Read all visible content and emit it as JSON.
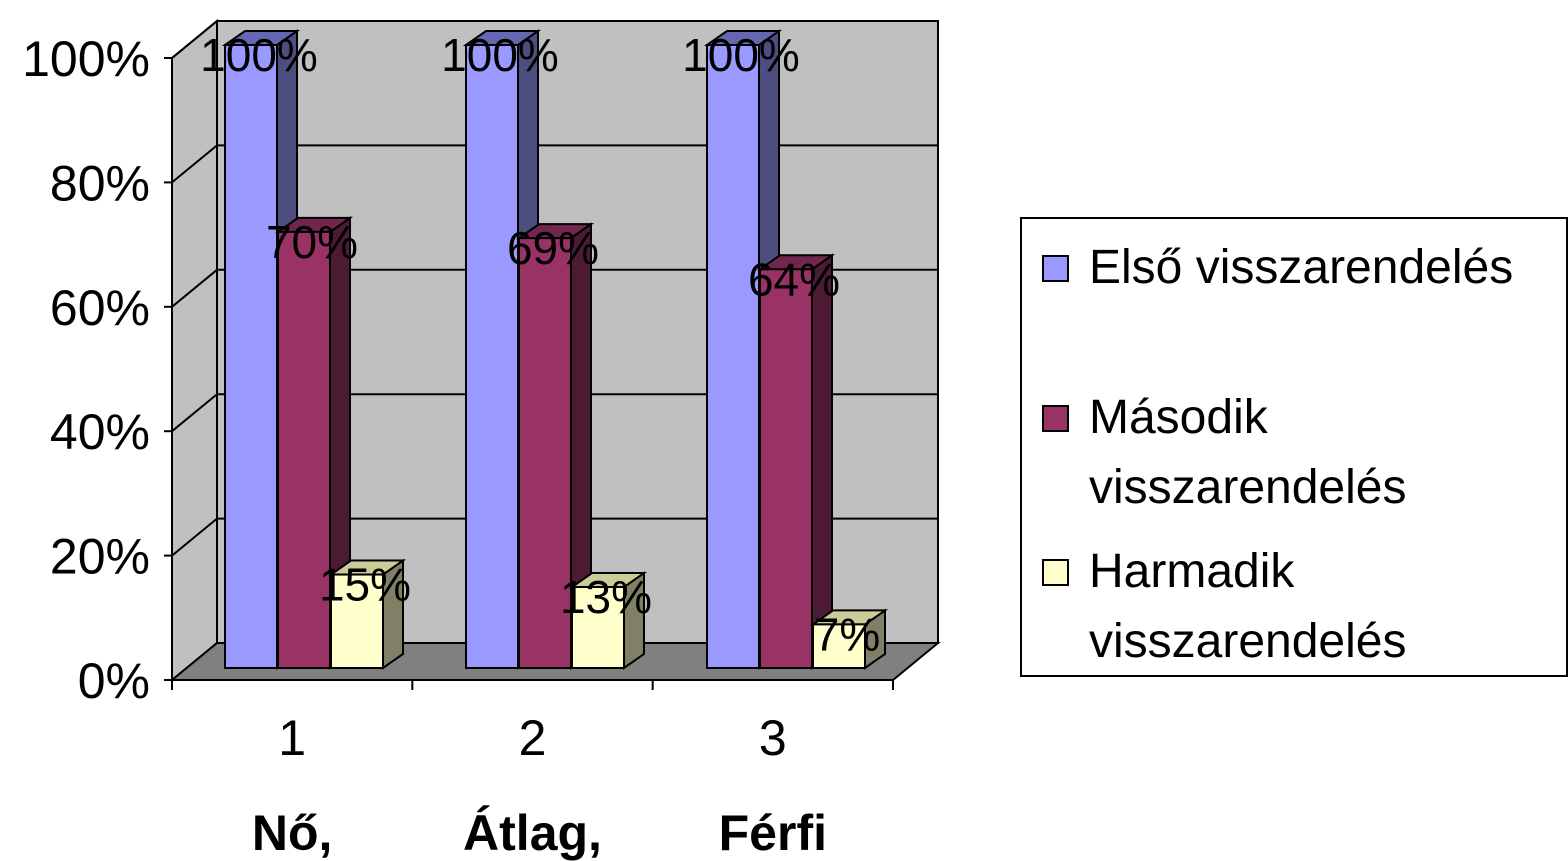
{
  "chart_data": {
    "type": "bar",
    "three_d": true,
    "categories": [
      "1",
      "2",
      "3"
    ],
    "category_subtitles": [
      "Nő,",
      "Átlag,",
      "Férfi"
    ],
    "series": [
      {
        "name": "Első visszarendelés",
        "values": [
          100,
          100,
          100
        ],
        "color": "#9999FF",
        "side_color": "#4D4D80",
        "top_color": "#6666B3"
      },
      {
        "name": "Második visszarendelés",
        "values": [
          70,
          69,
          64
        ],
        "color": "#993366",
        "side_color": "#4D1A33",
        "top_color": "#73264D"
      },
      {
        "name": "Harmadik visszarendelés",
        "values": [
          15,
          13,
          7
        ],
        "color": "#FFFFCC",
        "side_color": "#808066",
        "top_color": "#CCCC99"
      }
    ],
    "data_labels": [
      [
        "100%",
        "100%",
        "100%"
      ],
      [
        "70%",
        "69%",
        "64%"
      ],
      [
        "15%",
        "13%",
        "7%"
      ]
    ],
    "y_tick_labels": [
      "0%",
      "20%",
      "40%",
      "60%",
      "80%",
      "100%"
    ],
    "ylim": [
      0,
      100
    ],
    "grid": true,
    "legend_position": "right",
    "wall_color": "#C0C0C0",
    "floor_color": "#808080"
  }
}
